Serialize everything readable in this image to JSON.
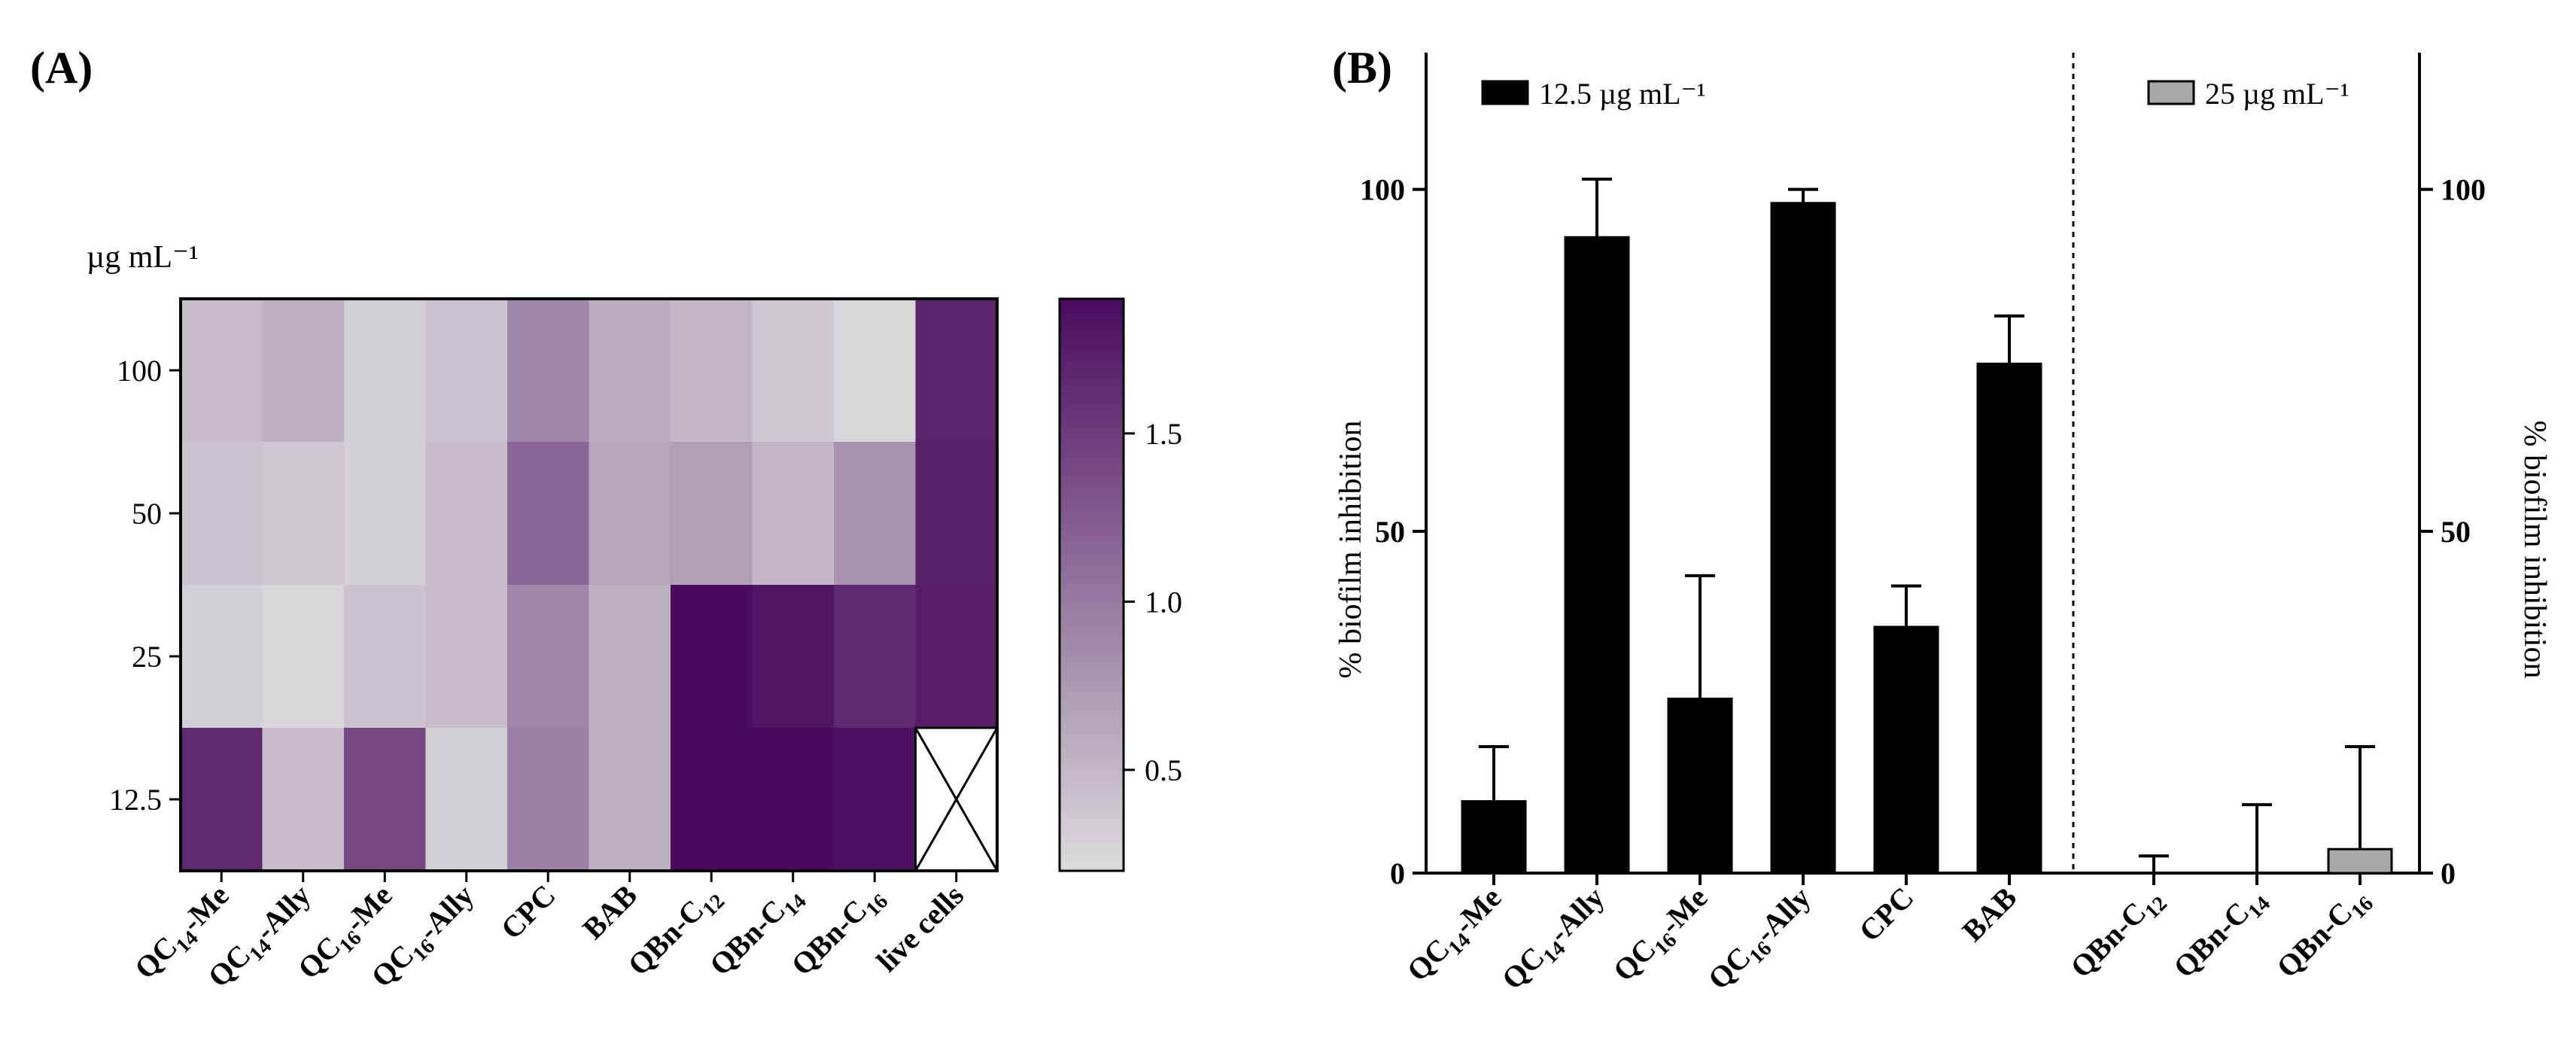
{
  "panel_a_label": "(A)",
  "panel_b_label": "(B)",
  "chart_data": [
    {
      "type": "heatmap",
      "panel": "A",
      "unit_label": "µg mL⁻¹",
      "columns": [
        "QC14-Me",
        "QC14-Ally",
        "QC16-Me",
        "QC16-Ally",
        "CPC",
        "BAB",
        "QBn-C12",
        "QBn-C14",
        "QBn-C16",
        "live cells"
      ],
      "column_labels": [
        {
          "base": "QC",
          "sub": "14",
          "suffix": "-Me"
        },
        {
          "base": "QC",
          "sub": "14",
          "suffix": "-Ally"
        },
        {
          "base": "QC",
          "sub": "16",
          "suffix": "-Me"
        },
        {
          "base": "QC",
          "sub": "16",
          "suffix": "-Ally"
        },
        {
          "base": "CPC",
          "sub": "",
          "suffix": ""
        },
        {
          "base": "BAB",
          "sub": "",
          "suffix": ""
        },
        {
          "base": "QBn-C",
          "sub": "12",
          "suffix": ""
        },
        {
          "base": "QBn-C",
          "sub": "14",
          "suffix": ""
        },
        {
          "base": "QBn-C",
          "sub": "16",
          "suffix": ""
        },
        {
          "base": "live cells",
          "sub": "",
          "suffix": ""
        }
      ],
      "rows": [
        "100",
        "50",
        "25",
        "12.5"
      ],
      "values": [
        [
          0.45,
          0.55,
          0.3,
          0.4,
          0.9,
          0.6,
          0.5,
          0.35,
          0.25,
          1.7
        ],
        [
          0.4,
          0.35,
          0.3,
          0.45,
          1.15,
          0.65,
          0.7,
          0.5,
          0.8,
          1.72
        ],
        [
          0.3,
          0.25,
          0.4,
          0.45,
          0.9,
          0.55,
          1.9,
          1.82,
          1.65,
          1.75
        ],
        [
          1.65,
          0.45,
          1.4,
          0.3,
          0.95,
          0.55,
          1.9,
          1.9,
          1.85,
          null
        ]
      ],
      "colorbar": {
        "min": 0.2,
        "max": 1.9,
        "ticks": [
          "0.5",
          "1.0",
          "1.5"
        ],
        "low_color": "#dcdcdc",
        "high_color": "#4a0a5e"
      },
      "missing_cell_note": "live cells at 12.5 shown as crossed white box"
    },
    {
      "type": "bar",
      "panel": "B",
      "categories": [
        "QC14-Me",
        "QC14-Ally",
        "QC16-Me",
        "QC16-Ally",
        "CPC",
        "BAB",
        "QBn-C12",
        "QBn-C14",
        "QBn-C16"
      ],
      "category_labels": [
        {
          "base": "QC",
          "sub": "14",
          "suffix": "-Me"
        },
        {
          "base": "QC",
          "sub": "14",
          "suffix": "-Ally"
        },
        {
          "base": "QC",
          "sub": "16",
          "suffix": "-Me"
        },
        {
          "base": "QC",
          "sub": "16",
          "suffix": "-Ally"
        },
        {
          "base": "CPC",
          "sub": "",
          "suffix": ""
        },
        {
          "base": "BAB",
          "sub": "",
          "suffix": ""
        },
        {
          "base": "QBn-C",
          "sub": "12",
          "suffix": ""
        },
        {
          "base": "QBn-C",
          "sub": "14",
          "suffix": ""
        },
        {
          "base": "QBn-C",
          "sub": "16",
          "suffix": ""
        }
      ],
      "series": [
        {
          "name": "12.5 µg mL⁻¹",
          "color": "#000000",
          "values": [
            10.5,
            93,
            25.5,
            98,
            36,
            74.5,
            null,
            null,
            null
          ],
          "errors": [
            8,
            8.5,
            18,
            2,
            6,
            7,
            null,
            null,
            null
          ]
        },
        {
          "name": "25 µg mL⁻¹",
          "color": "#a8a8a8",
          "values": [
            null,
            null,
            null,
            null,
            null,
            null,
            0,
            0,
            3.5
          ],
          "errors": [
            null,
            null,
            null,
            null,
            null,
            null,
            2.5,
            10,
            15
          ]
        }
      ],
      "ylabel": "% biofilm inhibition",
      "ylabel_right": "% biofilm inhibition",
      "ylim": [
        0,
        120
      ],
      "yticks": [
        "0",
        "50",
        "100"
      ]
    }
  ]
}
